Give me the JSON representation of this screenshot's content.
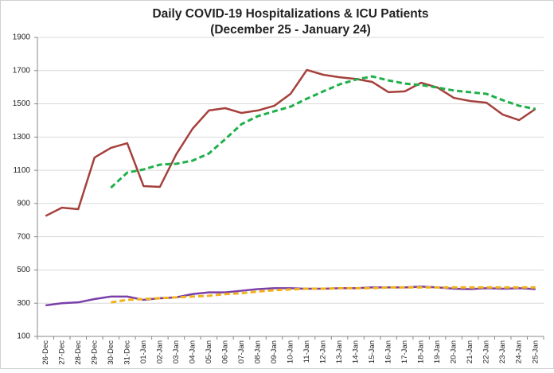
{
  "chart_data": {
    "type": "line",
    "title": "Daily COVID-19 Hospitalizations & ICU Patients",
    "subtitle": "(December 25 - January 24)",
    "categories": [
      "26-Dec",
      "27-Dec",
      "28-Dec",
      "29-Dec",
      "30-Dec",
      "31-Dec",
      "01-Jan",
      "02-Jan",
      "03-Jan",
      "04-Jan",
      "05-Jan",
      "06-Jan",
      "07-Jan",
      "08-Jan",
      "09-Jan",
      "10-Jan",
      "11-Jan",
      "12-Jan",
      "13-Jan",
      "14-Jan",
      "15-Jan",
      "16-Jan",
      "17-Jan",
      "18-Jan",
      "19-Jan",
      "20-Jan",
      "21-Jan",
      "22-Jan",
      "23-Jan",
      "24-Jan",
      "25-Jan"
    ],
    "series": [
      {
        "color": "#a5403c",
        "dashed": false,
        "values": [
          825,
          875,
          866,
          1177,
          1235,
          1263,
          1005,
          1000,
          1196,
          1350,
          1460,
          1474,
          1445,
          1460,
          1488,
          1560,
          1704,
          1675,
          1660,
          1650,
          1632,
          1570,
          1575,
          1627,
          1598,
          1536,
          1517,
          1507,
          1435,
          1402,
          1469
        ]
      },
      {
        "color": "#1fb04a",
        "dashed": true,
        "values": [
          null,
          null,
          null,
          null,
          995,
          1086,
          1105,
          1134,
          1139,
          1158,
          1201,
          1287,
          1378,
          1426,
          1455,
          1483,
          1531,
          1575,
          1617,
          1646,
          1665,
          1641,
          1622,
          1613,
          1598,
          1580,
          1570,
          1560,
          1522,
          1488,
          1469
        ]
      },
      {
        "color": "#7a3ea8",
        "dashed": false,
        "values": [
          287,
          300,
          305,
          325,
          340,
          340,
          320,
          330,
          335,
          355,
          365,
          365,
          375,
          385,
          390,
          390,
          387,
          387,
          390,
          390,
          395,
          395,
          395,
          400,
          395,
          387,
          385,
          390,
          387,
          390,
          385
        ]
      },
      {
        "color": "#f2b21b",
        "dashed": true,
        "values": [
          null,
          null,
          null,
          null,
          305,
          320,
          325,
          330,
          335,
          340,
          345,
          355,
          360,
          370,
          378,
          383,
          387,
          387,
          390,
          390,
          390,
          395,
          395,
          395,
          395,
          395,
          395,
          395,
          395,
          395,
          395
        ]
      }
    ],
    "ylim": [
      100,
      1900
    ],
    "yticks": [
      100,
      300,
      500,
      700,
      900,
      1100,
      1300,
      1500,
      1700,
      1900
    ],
    "grid": true
  }
}
